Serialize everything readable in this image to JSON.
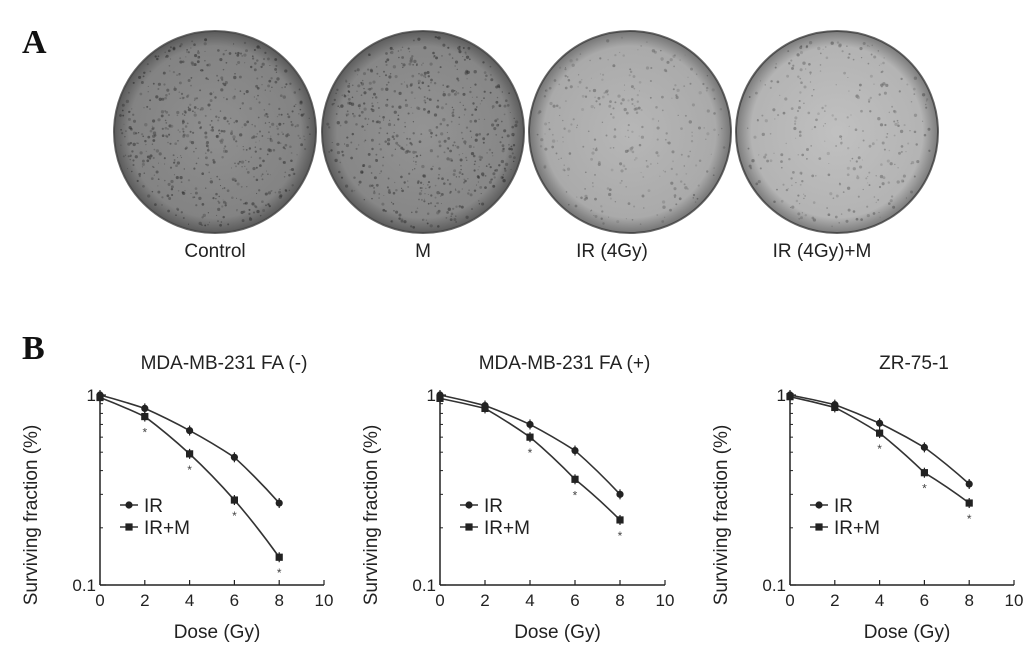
{
  "panel_a": {
    "letter": "A",
    "plates": [
      {
        "label": "Control",
        "tone": "#8a8a8a"
      },
      {
        "label": "M",
        "tone": "#8e8e8e"
      },
      {
        "label": "IR (4Gy)",
        "tone": "#b3b3b3"
      },
      {
        "label": "IR (4Gy)+M",
        "tone": "#bdbdbd"
      }
    ]
  },
  "panel_b": {
    "letter": "B"
  },
  "chart_data": [
    {
      "type": "line",
      "title": "MDA-MB-231 FA (-)",
      "xlabel": "Dose (Gy)",
      "ylabel": "Surviving fraction (%)",
      "xlim": [
        0,
        10
      ],
      "ylim": [
        0.1,
        1
      ],
      "yscale": "log",
      "xticks": [
        "0",
        "2",
        "4",
        "6",
        "8",
        "10"
      ],
      "yticks": [
        "0.1",
        "1"
      ],
      "legend_position": "bottom-left",
      "series": [
        {
          "name": "IR",
          "marker": "circle",
          "x": [
            0,
            2,
            4,
            6,
            8
          ],
          "y": [
            1.0,
            0.85,
            0.65,
            0.47,
            0.27
          ]
        },
        {
          "name": "IR+M",
          "marker": "square",
          "x": [
            0,
            2,
            4,
            6,
            8
          ],
          "y": [
            0.97,
            0.77,
            0.49,
            0.28,
            0.14
          ]
        }
      ],
      "asterisks_at_dose": [
        2,
        4,
        6,
        8
      ]
    },
    {
      "type": "line",
      "title": "MDA-MB-231 FA (+)",
      "xlabel": "Dose (Gy)",
      "ylabel": "Surviving fraction (%)",
      "xlim": [
        0,
        10
      ],
      "ylim": [
        0.1,
        1
      ],
      "yscale": "log",
      "xticks": [
        "0",
        "2",
        "4",
        "6",
        "8",
        "10"
      ],
      "yticks": [
        "0.1",
        "1"
      ],
      "legend_position": "bottom-left",
      "series": [
        {
          "name": "IR",
          "marker": "circle",
          "x": [
            0,
            2,
            4,
            6,
            8
          ],
          "y": [
            1.0,
            0.88,
            0.7,
            0.51,
            0.3
          ]
        },
        {
          "name": "IR+M",
          "marker": "square",
          "x": [
            0,
            2,
            4,
            6,
            8
          ],
          "y": [
            0.96,
            0.85,
            0.6,
            0.36,
            0.22
          ]
        }
      ],
      "asterisks_at_dose": [
        4,
        6,
        8
      ]
    },
    {
      "type": "line",
      "title": "ZR-75-1",
      "xlabel": "Dose (Gy)",
      "ylabel": "Surviving fraction (%)",
      "xlim": [
        0,
        10
      ],
      "ylim": [
        0.1,
        1
      ],
      "yscale": "log",
      "xticks": [
        "0",
        "2",
        "4",
        "6",
        "8",
        "10"
      ],
      "yticks": [
        "0.1",
        "1"
      ],
      "legend_position": "bottom-left",
      "series": [
        {
          "name": "IR",
          "marker": "circle",
          "x": [
            0,
            2,
            4,
            6,
            8
          ],
          "y": [
            1.0,
            0.89,
            0.71,
            0.53,
            0.34
          ]
        },
        {
          "name": "IR+M",
          "marker": "square",
          "x": [
            0,
            2,
            4,
            6,
            8
          ],
          "y": [
            0.98,
            0.86,
            0.63,
            0.39,
            0.27
          ]
        }
      ],
      "asterisks_at_dose": [
        4,
        6,
        8
      ]
    }
  ]
}
